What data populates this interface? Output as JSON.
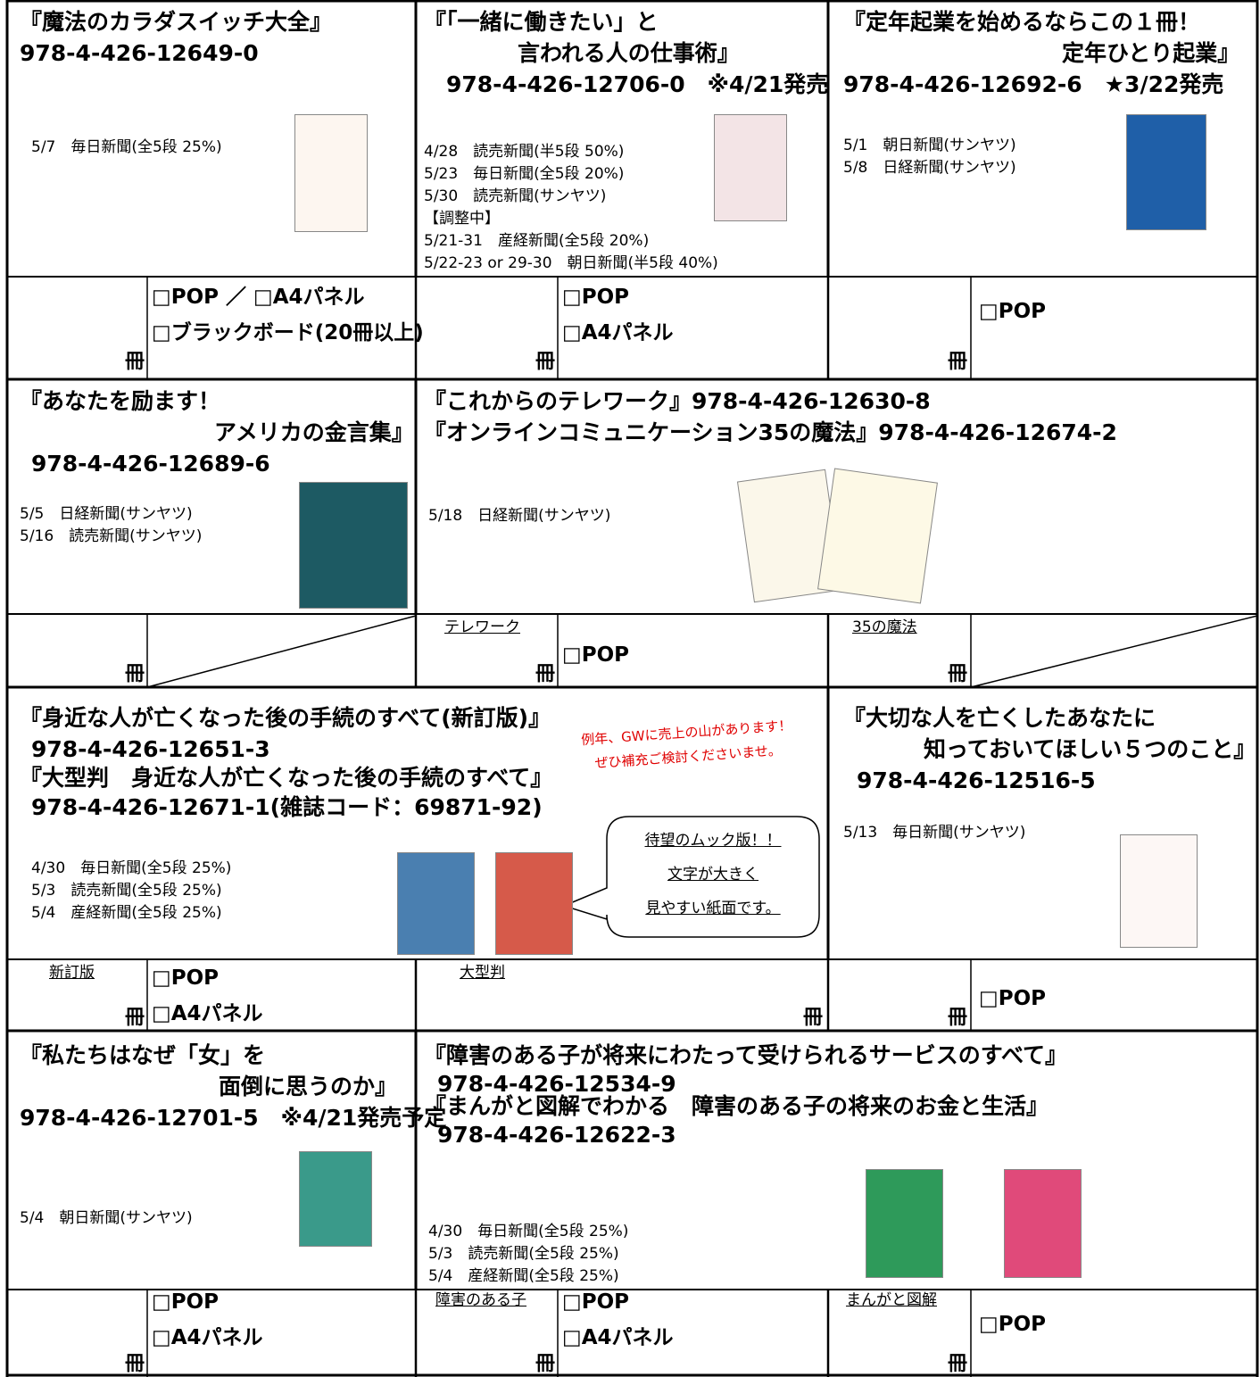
{
  "blocks": [
    {
      "title": [
        "『魔法のカラダスイッチ大全』",
        "978-4-426-12649-0"
      ],
      "ads": [
        "5/7　毎日新聞(全5段 25%)"
      ]
    },
    {
      "title": [
        "『「一緒に働きたい」と",
        "言われる人の仕事術』",
        "978-4-426-12706-0　※4/21発売"
      ],
      "ads": [
        "4/28　読売新聞(半5段 50%)",
        "5/23　毎日新聞(全5段 20%)",
        "5/30　読売新聞(サンヤツ)",
        "【調整中】",
        "5/21-31　産経新聞(全5段 20%)",
        "5/22-23 or 29-30　朝日新聞(半5段 40%)"
      ]
    },
    {
      "title": [
        "『定年起業を始めるならこの１冊！",
        "定年ひとり起業』",
        "978-4-426-12692-6　★3/22発売"
      ],
      "ads": [
        "5/1　朝日新聞(サンヤツ)",
        "5/8　日経新聞(サンヤツ)"
      ]
    },
    {
      "title": [
        "『あなたを励ます！",
        "アメリカの金言集』",
        "978-4-426-12689-6"
      ],
      "ads": [
        "5/5　日経新聞(サンヤツ)",
        "5/16　読売新聞(サンヤツ)"
      ]
    },
    {
      "title": [
        "『これからのテレワーク』978-4-426-12630-8",
        "『オンラインコミュニケーション35の魔法』978-4-426-12674-2"
      ],
      "ads": [
        "5/18　日経新聞(サンヤツ)"
      ]
    },
    {
      "title": [
        "『身近な人が亡くなった後の手続のすべて(新訂版)』",
        "978-4-426-12651-3",
        "『大型判　身近な人が亡くなった後の手続のすべて』",
        "978-4-426-12671-1(雑誌コード：69871-92)"
      ],
      "ads": [
        "4/30　毎日新聞(全5段 25%)",
        "5/3　読売新聞(全5段 25%)",
        "5/4　産経新聞(全5段 25%)"
      ],
      "note": [
        "例年、GWに売上の山があります！",
        "ぜひ補充ご検討くださいませ。"
      ],
      "bubble": [
        "待望のムック版！！",
        "文字が大きく",
        "見やすい紙面です。"
      ]
    },
    {
      "title": [
        "『大切な人を亡くしたあなたに",
        "知っておいてほしい５つのこと』",
        "978-4-426-12516-5"
      ],
      "ads": [
        "5/13　毎日新聞(サンヤツ)"
      ]
    },
    {
      "title": [
        "『私たちはなぜ「女」を",
        "面倒に思うのか』",
        "978-4-426-12701-5　※4/21発売予定"
      ],
      "ads": [
        "5/4　朝日新聞(サンヤツ)"
      ]
    },
    {
      "title": [
        "『障害のある子が将来にわたって受けられるサービスのすべて』",
        "978-4-426-12534-9",
        "『まんがと図解でわかる　障害のある子の将来のお金と生活』",
        "978-4-426-12622-3"
      ],
      "ads": [
        "4/30　毎日新聞(全5段 25%)",
        "5/3　読売新聞(全5段 25%)",
        "5/4　産経新聞(全5段 25%)"
      ]
    }
  ],
  "orders": [
    {
      "unit": "冊",
      "options": [
        "□POP ／ □A4パネル",
        "□ブラックボード(20冊以上)"
      ]
    },
    {
      "unit": "冊",
      "options": [
        "□POP",
        "□A4パネル"
      ]
    },
    {
      "unit": "冊",
      "options": [
        "□POP"
      ]
    },
    {
      "unit": "冊"
    },
    {
      "label": "テレワーク",
      "unit": "冊",
      "options": [
        "□POP"
      ]
    },
    {
      "label": "35の魔法",
      "unit": "冊"
    },
    {
      "label": "新訂版",
      "unit": "冊",
      "options": [
        "□POP",
        "□A4パネル"
      ]
    },
    {
      "label": "大型判",
      "unit": "冊"
    },
    {
      "unit": "冊",
      "options": [
        "□POP"
      ]
    },
    {
      "unit": "冊",
      "options": [
        "□POP",
        "□A4パネル"
      ]
    },
    {
      "label": "障害のある子",
      "unit": "冊",
      "options": [
        "□POP",
        "□A4パネル"
      ]
    },
    {
      "label": "まんがと図解",
      "unit": "冊",
      "options": [
        "□POP"
      ]
    }
  ]
}
